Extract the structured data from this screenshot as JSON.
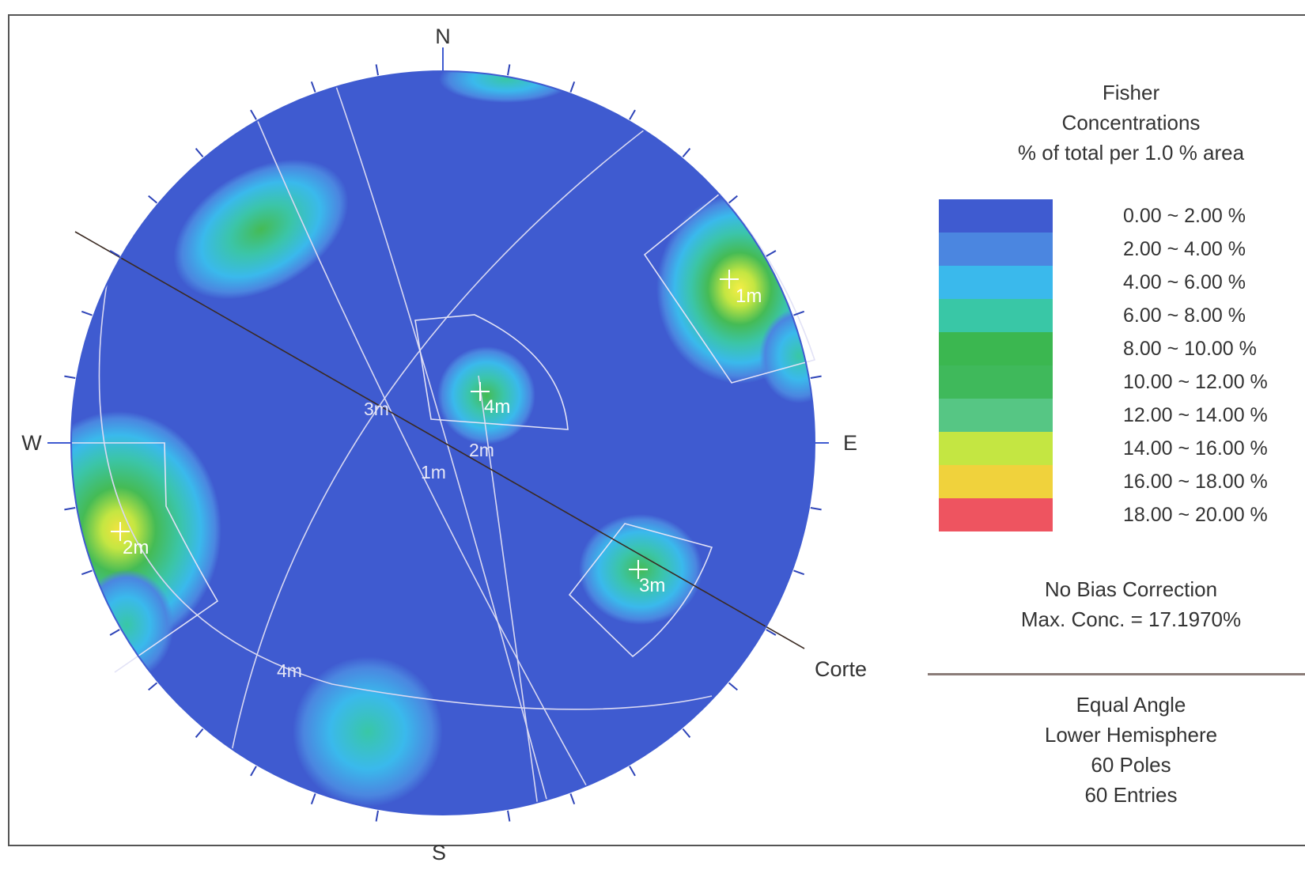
{
  "directions": {
    "north": "N",
    "south": "S",
    "east": "E",
    "west": "W"
  },
  "section_line_label": "Corte",
  "legend": {
    "title_lines": [
      "Fisher",
      "Concentrations",
      "% of total per 1.0 % area"
    ],
    "bins": [
      {
        "label": "0.00 ~  2.00 %",
        "color": "#3f5bd0"
      },
      {
        "label": "2.00 ~  4.00 %",
        "color": "#4b86e0"
      },
      {
        "label": "4.00 ~  6.00 %",
        "color": "#3ab9ec"
      },
      {
        "label": "6.00 ~  8.00 %",
        "color": "#39c7a6"
      },
      {
        "label": "8.00 ~ 10.00 %",
        "color": "#3bb750"
      },
      {
        "label": "10.00 ~ 12.00 %",
        "color": "#3fb95b"
      },
      {
        "label": "12.00 ~ 14.00 %",
        "color": "#56c684"
      },
      {
        "label": "14.00 ~ 16.00 %",
        "color": "#c4e642"
      },
      {
        "label": "16.00 ~ 18.00 %",
        "color": "#f0d23c"
      },
      {
        "label": "18.00 ~ 20.00 %",
        "color": "#ee5460"
      }
    ],
    "bias_text": "No Bias Correction",
    "max_conc_text": "Max. Conc. = 17.1970%",
    "projection_lines": [
      "Equal Angle",
      "Lower Hemisphere",
      "60 Poles",
      "60 Entries"
    ]
  },
  "set_labels": {
    "poles": [
      "1m",
      "2m",
      "3m",
      "4m"
    ],
    "planes": [
      "1m",
      "2m",
      "3m",
      "4m"
    ]
  }
}
